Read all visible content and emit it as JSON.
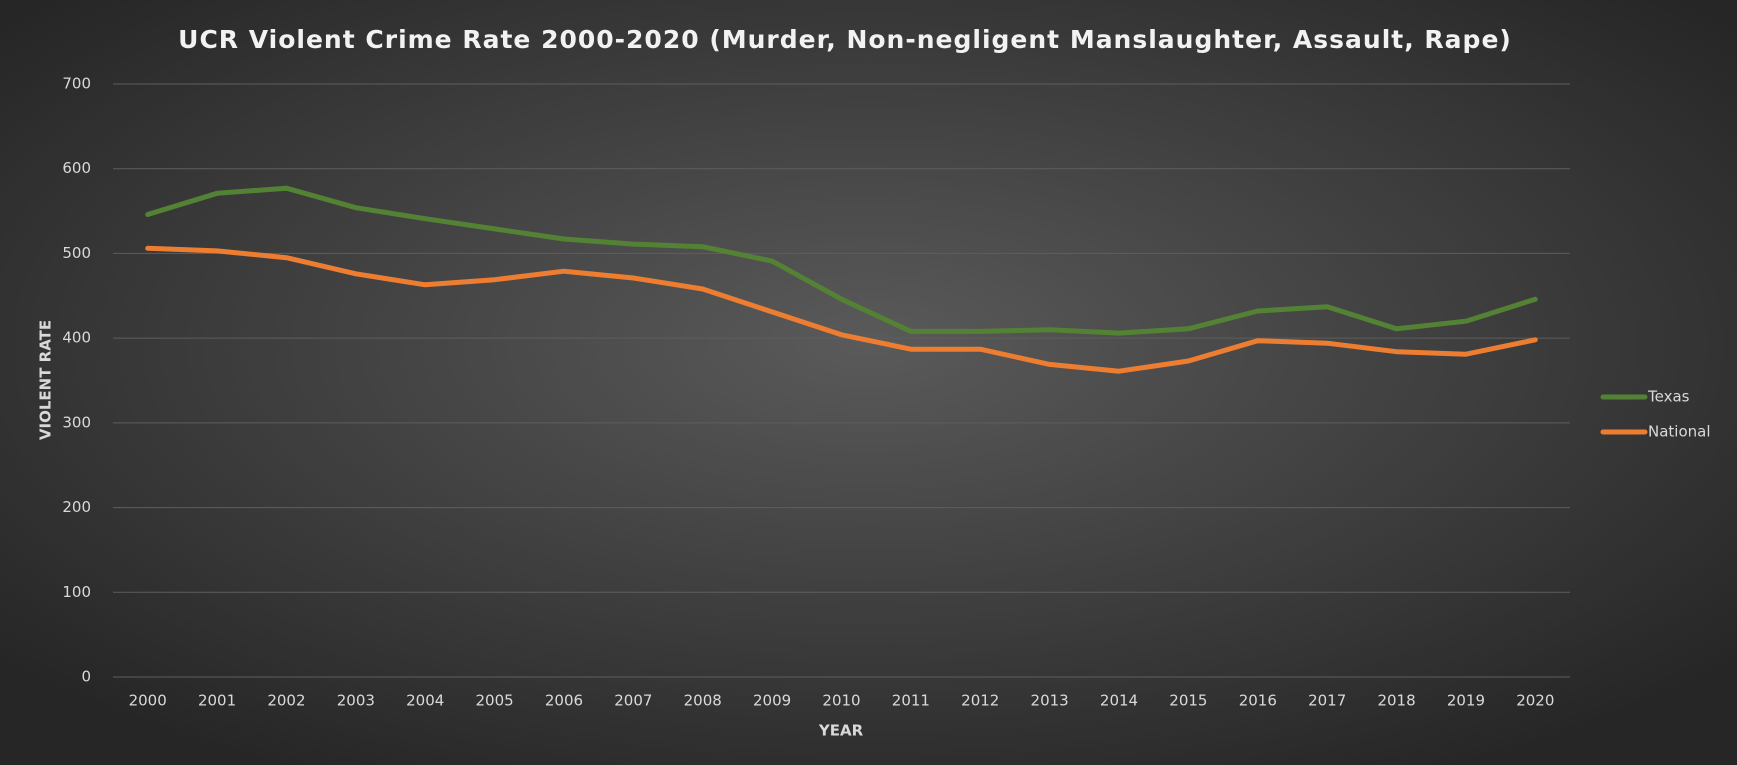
{
  "chart_data": {
    "type": "line",
    "title": "UCR Violent Crime Rate 2000-2020 (Murder, Non-negligent Manslaughter, Assault, Rape)",
    "x_label": "YEAR",
    "y_label": "VIOLENT RATE",
    "categories": [
      "2000",
      "2001",
      "2002",
      "2003",
      "2004",
      "2005",
      "2006",
      "2007",
      "2008",
      "2009",
      "2010",
      "2011",
      "2012",
      "2013",
      "2014",
      "2015",
      "2016",
      "2017",
      "2018",
      "2019",
      "2020"
    ],
    "series": [
      {
        "name": "Texas",
        "color": "#548235",
        "values": [
          546,
          571,
          577,
          554,
          541,
          529,
          517,
          511,
          508,
          491,
          446,
          408,
          408,
          410,
          406,
          411,
          432,
          437,
          411,
          420,
          446
        ]
      },
      {
        "name": "National",
        "color": "#ed7d31",
        "values": [
          506,
          503,
          495,
          476,
          463,
          469,
          479,
          471,
          458,
          431,
          404,
          387,
          387,
          369,
          361,
          373,
          397,
          394,
          384,
          381,
          398
        ]
      }
    ],
    "ylim": [
      0,
      700
    ],
    "yticks": [
      0,
      100,
      200,
      300,
      400,
      500,
      600,
      700
    ],
    "grid": true,
    "legend": "right"
  }
}
